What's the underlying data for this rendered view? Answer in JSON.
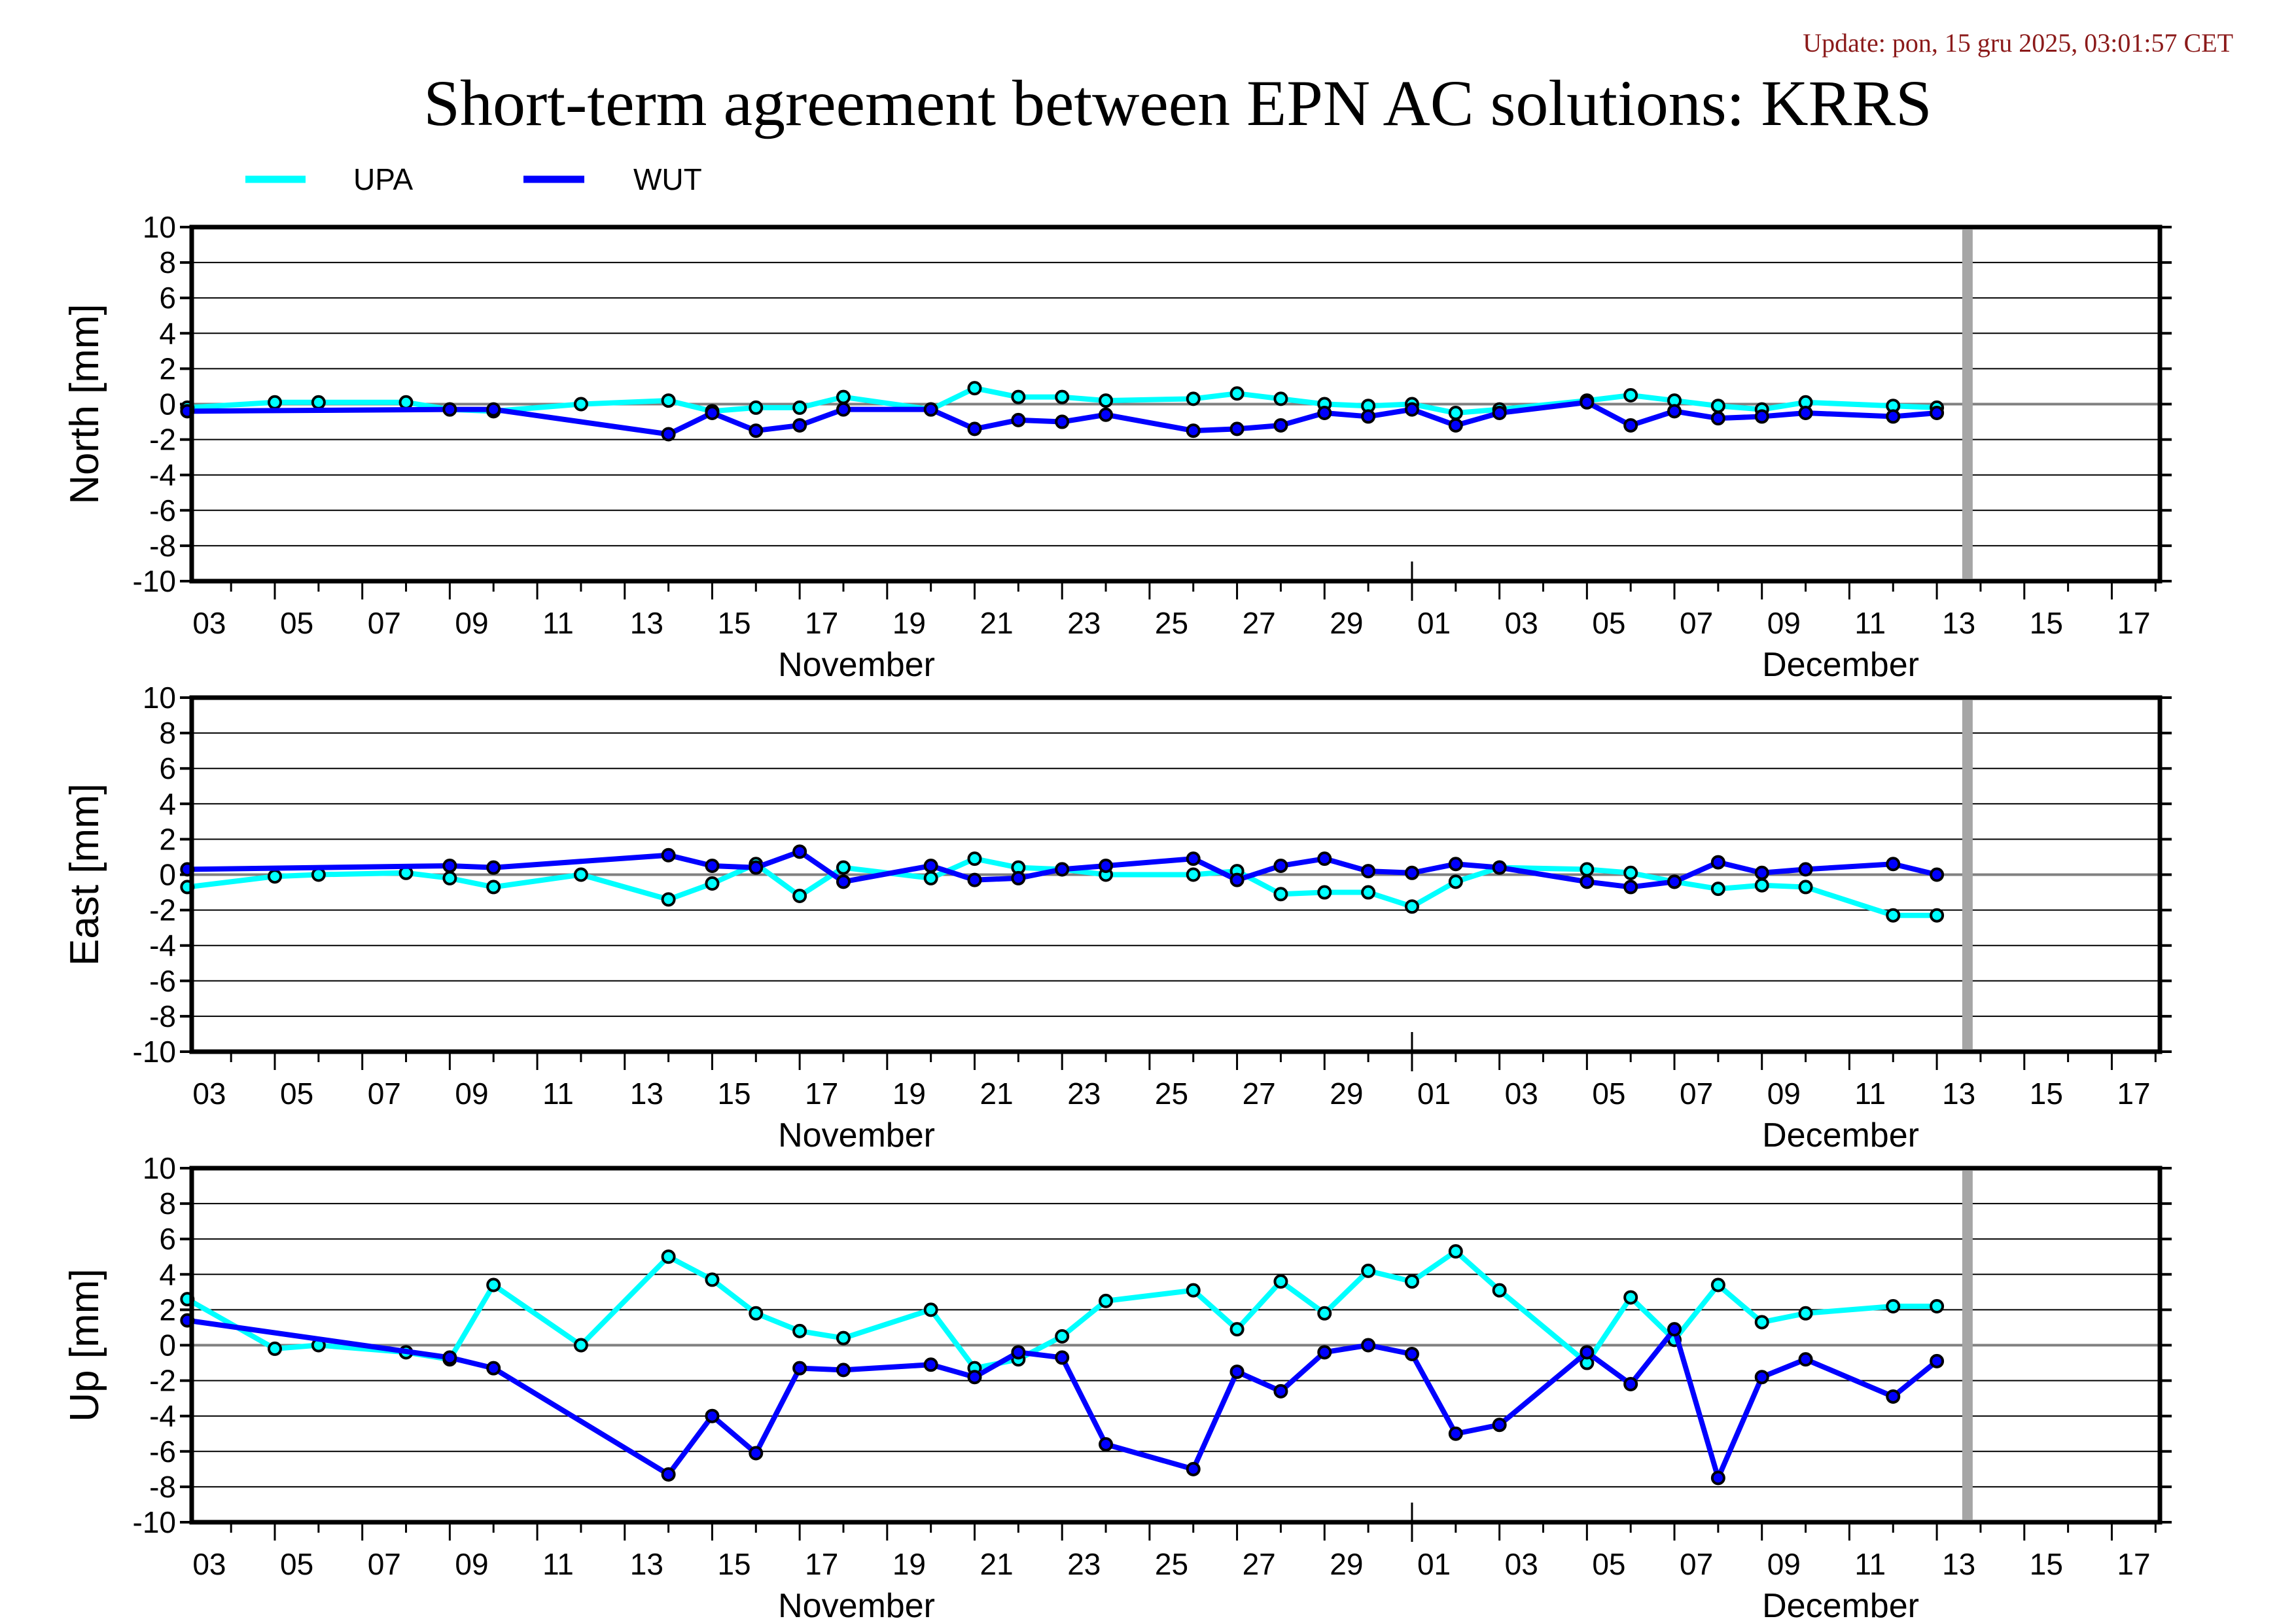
{
  "header": {
    "update": "Update: pon, 15 gru 2025, 03:01:57 CET",
    "title": "Short-term agreement between EPN AC solutions: KRRS"
  },
  "legend": [
    {
      "label": "UPA",
      "color": "#00ffff"
    },
    {
      "label": "WUT",
      "color": "#0000ff"
    }
  ],
  "chart_data": [
    {
      "type": "line",
      "ylabel": "North [mm]",
      "ylim": [
        -10,
        10
      ],
      "yticks": [
        "10",
        "8",
        "6",
        "4",
        "2",
        "0",
        "-2",
        "-4",
        "-6",
        "-8",
        "-10"
      ],
      "xlabel_months": [
        "November",
        "December"
      ],
      "xticks": [
        "03",
        "05",
        "07",
        "09",
        "11",
        "13",
        "15",
        "17",
        "19",
        "21",
        "23",
        "25",
        "27",
        "29",
        "01",
        "03",
        "05",
        "07",
        "09",
        "11",
        "13",
        "15",
        "17"
      ],
      "x_unit": "days since 2025-11-03",
      "xlim": [
        0.1,
        45.1
      ],
      "current_day_marker": 40.7,
      "grid": true,
      "series": [
        {
          "name": "UPA",
          "x": [
            0,
            2,
            3,
            5,
            6,
            7,
            9,
            11,
            12,
            13,
            14,
            15,
            17,
            18,
            19,
            20,
            21,
            23,
            24,
            25,
            26,
            27,
            28,
            29,
            30,
            32,
            33,
            34,
            35,
            36,
            37,
            39,
            40
          ],
          "values": [
            -0.2,
            0.1,
            0.1,
            0.1,
            -0.3,
            -0.4,
            0.0,
            0.2,
            -0.4,
            -0.2,
            -0.2,
            0.4,
            -0.3,
            0.9,
            0.4,
            0.4,
            0.2,
            0.3,
            0.6,
            0.3,
            0.0,
            -0.1,
            0.0,
            -0.5,
            -0.3,
            0.2,
            0.5,
            0.2,
            -0.1,
            -0.3,
            0.1,
            -0.1,
            -0.2
          ]
        },
        {
          "name": "WUT",
          "x": [
            0,
            6,
            7,
            11,
            12,
            13,
            14,
            15,
            17,
            18,
            19,
            20,
            21,
            23,
            24,
            25,
            26,
            27,
            28,
            29,
            30,
            32,
            33,
            34,
            35,
            36,
            37,
            39,
            40
          ],
          "values": [
            -0.4,
            -0.3,
            -0.3,
            -1.7,
            -0.5,
            -1.5,
            -1.2,
            -0.3,
            -0.3,
            -1.4,
            -0.9,
            -1.0,
            -0.6,
            -1.5,
            -1.4,
            -1.2,
            -0.5,
            -0.7,
            -0.3,
            -1.2,
            -0.5,
            0.1,
            -1.2,
            -0.4,
            -0.8,
            -0.7,
            -0.5,
            -0.7,
            -0.5
          ]
        }
      ]
    },
    {
      "type": "line",
      "ylabel": "East [mm]",
      "ylim": [
        -10,
        10
      ],
      "yticks": [
        "10",
        "8",
        "6",
        "4",
        "2",
        "0",
        "-2",
        "-4",
        "-6",
        "-8",
        "-10"
      ],
      "xlabel_months": [
        "November",
        "December"
      ],
      "xticks": [
        "03",
        "05",
        "07",
        "09",
        "11",
        "13",
        "15",
        "17",
        "19",
        "21",
        "23",
        "25",
        "27",
        "29",
        "01",
        "03",
        "05",
        "07",
        "09",
        "11",
        "13",
        "15",
        "17"
      ],
      "x_unit": "days since 2025-11-03",
      "xlim": [
        0.1,
        45.1
      ],
      "current_day_marker": 40.7,
      "grid": true,
      "series": [
        {
          "name": "UPA",
          "x": [
            0,
            2,
            3,
            5,
            6,
            7,
            9,
            11,
            12,
            13,
            14,
            15,
            17,
            18,
            19,
            20,
            21,
            23,
            24,
            25,
            26,
            27,
            28,
            29,
            30,
            32,
            33,
            34,
            35,
            36,
            37,
            39,
            40
          ],
          "values": [
            -0.7,
            -0.1,
            0.0,
            0.1,
            -0.2,
            -0.7,
            0.0,
            -1.4,
            -0.5,
            0.6,
            -1.2,
            0.4,
            -0.2,
            0.9,
            0.4,
            0.3,
            0.0,
            0.0,
            0.2,
            -1.1,
            -1.0,
            -1.0,
            -1.8,
            -0.4,
            0.4,
            0.3,
            0.1,
            -0.4,
            -0.8,
            -0.6,
            -0.7,
            -2.3,
            -2.3
          ]
        },
        {
          "name": "WUT",
          "x": [
            0,
            6,
            7,
            11,
            12,
            13,
            14,
            15,
            17,
            18,
            19,
            20,
            21,
            23,
            24,
            25,
            26,
            27,
            28,
            29,
            30,
            32,
            33,
            34,
            35,
            36,
            37,
            39,
            40
          ],
          "values": [
            0.3,
            0.5,
            0.4,
            1.1,
            0.5,
            0.4,
            1.3,
            -0.4,
            0.5,
            -0.3,
            -0.2,
            0.3,
            0.5,
            0.9,
            -0.3,
            0.5,
            0.9,
            0.2,
            0.1,
            0.6,
            0.4,
            -0.4,
            -0.7,
            -0.4,
            0.7,
            0.1,
            0.3,
            0.6,
            0.0
          ]
        }
      ]
    },
    {
      "type": "line",
      "ylabel": "Up [mm]",
      "ylim": [
        -10,
        10
      ],
      "yticks": [
        "10",
        "8",
        "6",
        "4",
        "2",
        "0",
        "-2",
        "-4",
        "-6",
        "-8",
        "-10"
      ],
      "xlabel_months": [
        "November",
        "December"
      ],
      "xticks": [
        "03",
        "05",
        "07",
        "09",
        "11",
        "13",
        "15",
        "17",
        "19",
        "21",
        "23",
        "25",
        "27",
        "29",
        "01",
        "03",
        "05",
        "07",
        "09",
        "11",
        "13",
        "15",
        "17"
      ],
      "x_unit": "days since 2025-11-03",
      "xlim": [
        0.1,
        45.1
      ],
      "current_day_marker": 40.7,
      "grid": true,
      "series": [
        {
          "name": "UPA",
          "x": [
            0,
            2,
            3,
            5,
            6,
            7,
            9,
            11,
            12,
            13,
            14,
            15,
            17,
            18,
            19,
            20,
            21,
            23,
            24,
            25,
            26,
            27,
            28,
            29,
            30,
            32,
            33,
            34,
            35,
            36,
            37,
            39,
            40
          ],
          "values": [
            2.6,
            -0.2,
            0.0,
            -0.4,
            -0.8,
            3.4,
            0.0,
            5.0,
            3.7,
            1.8,
            0.8,
            0.4,
            2.0,
            -1.3,
            -0.8,
            0.5,
            2.5,
            3.1,
            0.9,
            3.6,
            1.8,
            4.2,
            3.6,
            5.3,
            3.1,
            -1.0,
            2.7,
            0.3,
            3.4,
            1.3,
            1.8,
            2.2,
            2.2
          ]
        },
        {
          "name": "WUT",
          "x": [
            0,
            6,
            7,
            11,
            12,
            13,
            14,
            15,
            17,
            18,
            19,
            20,
            21,
            23,
            24,
            25,
            26,
            27,
            28,
            29,
            30,
            32,
            33,
            34,
            35,
            36,
            37,
            39,
            40
          ],
          "values": [
            1.4,
            -0.7,
            -1.3,
            -7.3,
            -4.0,
            -6.1,
            -1.3,
            -1.4,
            -1.1,
            -1.8,
            -0.4,
            -0.7,
            -5.6,
            -7.0,
            -1.5,
            -2.6,
            -0.4,
            0.0,
            -0.5,
            -5.0,
            -4.5,
            -0.4,
            -2.2,
            0.9,
            -7.5,
            -1.8,
            -0.8,
            -2.9,
            -0.9
          ]
        }
      ]
    }
  ]
}
